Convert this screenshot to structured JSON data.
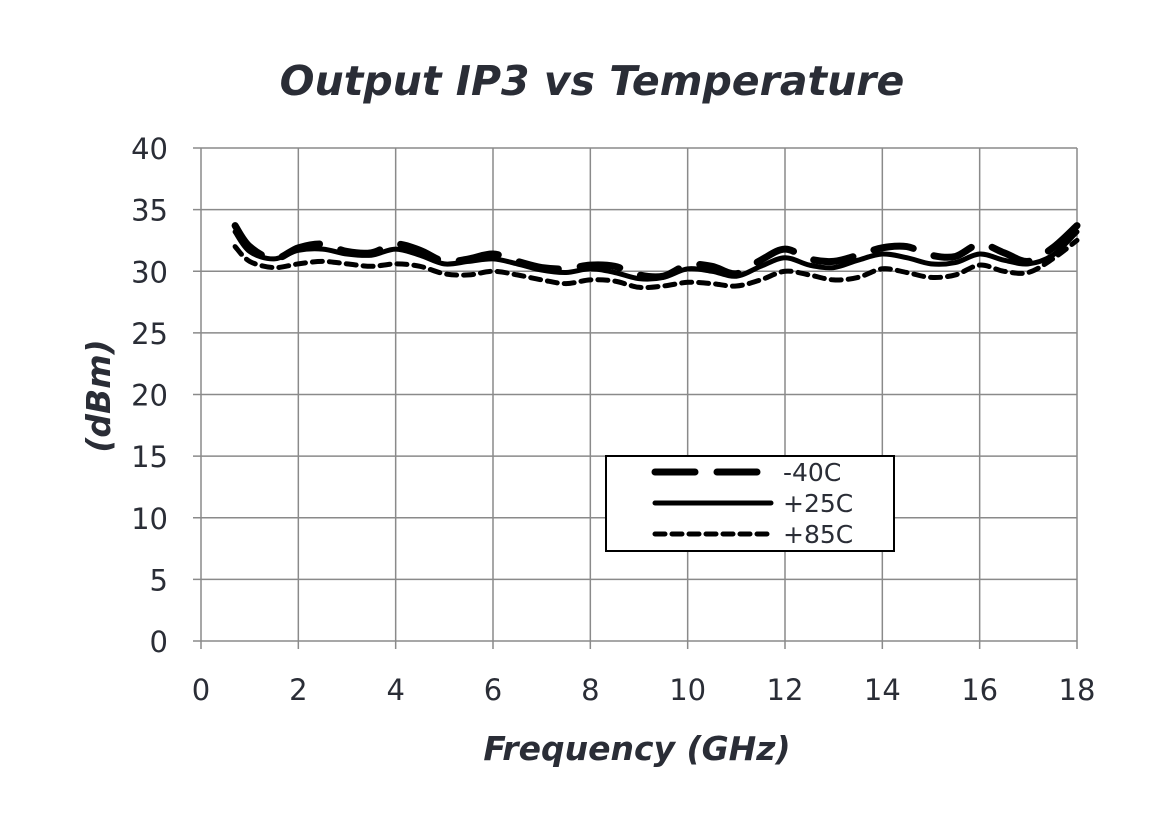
{
  "chart_data": {
    "type": "line",
    "title": "Output IP3 vs Temperature",
    "xlabel": "Frequency (GHz)",
    "ylabel": "(dBm)",
    "xlim": [
      0,
      18
    ],
    "ylim": [
      0,
      40
    ],
    "xticks": [
      0,
      2,
      4,
      6,
      8,
      10,
      12,
      14,
      16,
      18
    ],
    "yticks": [
      0,
      5,
      10,
      15,
      20,
      25,
      30,
      35,
      40
    ],
    "grid": true,
    "legend_position": "center-right",
    "series": [
      {
        "name": "-40C",
        "style": "long-dash",
        "x": [
          0.7,
          1.0,
          1.5,
          2.0,
          2.5,
          3.0,
          3.5,
          4.0,
          4.5,
          5.0,
          5.5,
          6.0,
          6.5,
          7.0,
          7.5,
          8.0,
          8.5,
          9.0,
          9.5,
          10.0,
          10.5,
          11.0,
          11.5,
          12.0,
          12.5,
          13.0,
          13.5,
          14.0,
          14.5,
          15.0,
          15.5,
          16.0,
          16.5,
          17.0,
          17.5,
          18.0
        ],
        "y": [
          33.7,
          32.0,
          31.0,
          31.9,
          32.2,
          31.6,
          31.5,
          32.2,
          31.7,
          30.8,
          31.0,
          31.4,
          30.8,
          30.3,
          30.2,
          30.5,
          30.4,
          29.7,
          29.6,
          30.5,
          30.4,
          29.8,
          30.9,
          31.8,
          31.0,
          30.8,
          31.3,
          31.9,
          32.0,
          31.3,
          31.2,
          32.2,
          31.5,
          30.8,
          31.9,
          33.7
        ]
      },
      {
        "name": "+25C",
        "style": "solid",
        "x": [
          0.7,
          1.0,
          1.5,
          2.0,
          2.5,
          3.0,
          3.5,
          4.0,
          4.5,
          5.0,
          5.5,
          6.0,
          6.5,
          7.0,
          7.5,
          8.0,
          8.5,
          9.0,
          9.5,
          10.0,
          10.5,
          11.0,
          11.5,
          12.0,
          12.5,
          13.0,
          13.5,
          14.0,
          14.5,
          15.0,
          15.5,
          16.0,
          16.5,
          17.0,
          17.5,
          18.0
        ],
        "y": [
          33.2,
          31.6,
          31.0,
          31.7,
          31.8,
          31.4,
          31.3,
          31.8,
          31.3,
          30.6,
          30.8,
          31.0,
          30.6,
          30.1,
          29.9,
          30.2,
          29.9,
          29.4,
          29.5,
          30.2,
          30.0,
          29.6,
          30.4,
          31.1,
          30.5,
          30.3,
          30.9,
          31.4,
          31.1,
          30.6,
          30.7,
          31.4,
          30.9,
          30.6,
          31.3,
          33.2
        ]
      },
      {
        "name": "+85C",
        "style": "short-dash",
        "x": [
          0.7,
          1.0,
          1.5,
          2.0,
          2.5,
          3.0,
          3.5,
          4.0,
          4.5,
          5.0,
          5.5,
          6.0,
          6.5,
          7.0,
          7.5,
          8.0,
          8.5,
          9.0,
          9.5,
          10.0,
          10.5,
          11.0,
          11.5,
          12.0,
          12.5,
          13.0,
          13.5,
          14.0,
          14.5,
          15.0,
          15.5,
          16.0,
          16.5,
          17.0,
          17.5,
          18.0
        ],
        "y": [
          32.0,
          30.8,
          30.3,
          30.6,
          30.8,
          30.6,
          30.4,
          30.6,
          30.4,
          29.8,
          29.7,
          30.0,
          29.7,
          29.3,
          29.0,
          29.3,
          29.2,
          28.7,
          28.8,
          29.1,
          29.0,
          28.8,
          29.3,
          30.0,
          29.7,
          29.3,
          29.5,
          30.2,
          29.9,
          29.5,
          29.7,
          30.5,
          30.0,
          29.9,
          31.0,
          32.5
        ]
      }
    ],
    "colors": {
      "line": "#000000",
      "grid": "#8a8a8a",
      "text": "#2a2d36"
    }
  }
}
